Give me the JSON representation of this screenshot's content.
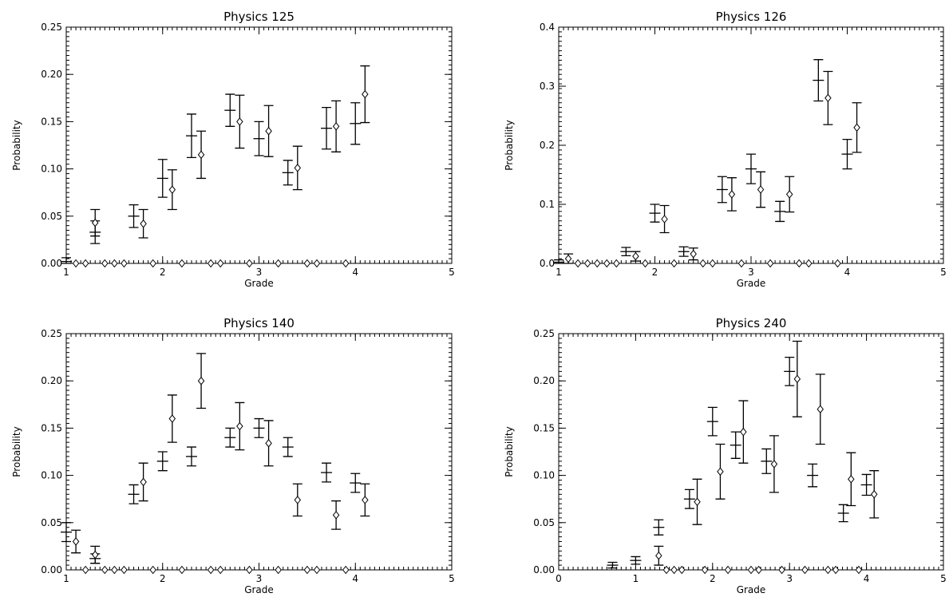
{
  "chart_data": [
    {
      "type": "scatter",
      "title": "Physics 125",
      "xlabel": "Grade",
      "ylabel": "Probability",
      "xlim": [
        1,
        5
      ],
      "ylim": [
        0,
        0.25
      ],
      "xticks": [
        "1",
        "2",
        "3",
        "4",
        "5"
      ],
      "yticks": [
        "0.00",
        "0.05",
        "0.10",
        "0.15",
        "0.20",
        "0.25"
      ],
      "series": [
        {
          "marker": "bar",
          "points": [
            {
              "x": 1.0,
              "y": 0.002,
              "err": 0.004
            },
            {
              "x": 1.3,
              "y": 0.033,
              "err": 0.012
            },
            {
              "x": 1.7,
              "y": 0.05,
              "err": 0.012
            },
            {
              "x": 2.0,
              "y": 0.09,
              "err": 0.02
            },
            {
              "x": 2.3,
              "y": 0.135,
              "err": 0.023
            },
            {
              "x": 2.7,
              "y": 0.162,
              "err": 0.017
            },
            {
              "x": 3.0,
              "y": 0.132,
              "err": 0.018
            },
            {
              "x": 3.3,
              "y": 0.096,
              "err": 0.013
            },
            {
              "x": 3.7,
              "y": 0.143,
              "err": 0.022
            },
            {
              "x": 4.0,
              "y": 0.148,
              "err": 0.022
            }
          ]
        },
        {
          "marker": "diamond",
          "points": [
            {
              "x": 1.3,
              "y": 0.043,
              "err": 0.014
            },
            {
              "x": 1.8,
              "y": 0.042,
              "err": 0.015
            },
            {
              "x": 2.1,
              "y": 0.078,
              "err": 0.021
            },
            {
              "x": 2.4,
              "y": 0.115,
              "err": 0.025
            },
            {
              "x": 2.8,
              "y": 0.15,
              "err": 0.028
            },
            {
              "x": 3.1,
              "y": 0.14,
              "err": 0.027
            },
            {
              "x": 3.4,
              "y": 0.101,
              "err": 0.023
            },
            {
              "x": 3.8,
              "y": 0.145,
              "err": 0.027
            },
            {
              "x": 4.1,
              "y": 0.179,
              "err": 0.03
            }
          ]
        },
        {
          "marker": "diamond",
          "points": [
            {
              "x": 1.1,
              "y": 0
            },
            {
              "x": 1.2,
              "y": 0
            },
            {
              "x": 1.4,
              "y": 0
            },
            {
              "x": 1.5,
              "y": 0
            },
            {
              "x": 1.6,
              "y": 0
            },
            {
              "x": 1.9,
              "y": 0
            },
            {
              "x": 2.2,
              "y": 0
            },
            {
              "x": 2.5,
              "y": 0
            },
            {
              "x": 2.6,
              "y": 0
            },
            {
              "x": 2.9,
              "y": 0
            },
            {
              "x": 3.2,
              "y": 0
            },
            {
              "x": 3.5,
              "y": 0
            },
            {
              "x": 3.6,
              "y": 0
            },
            {
              "x": 3.9,
              "y": 0
            }
          ]
        }
      ]
    },
    {
      "type": "scatter",
      "title": "Physics 126",
      "xlabel": "Grade",
      "ylabel": "Probability",
      "xlim": [
        1,
        5
      ],
      "ylim": [
        0,
        0.4
      ],
      "xticks": [
        "1",
        "2",
        "3",
        "4",
        "5"
      ],
      "yticks": [
        "0.0",
        "0.1",
        "0.2",
        "0.3",
        "0.4"
      ],
      "series": [
        {
          "marker": "bar",
          "points": [
            {
              "x": 1.0,
              "y": 0.002,
              "err": 0.004
            },
            {
              "x": 1.7,
              "y": 0.02,
              "err": 0.007
            },
            {
              "x": 2.0,
              "y": 0.085,
              "err": 0.015
            },
            {
              "x": 2.3,
              "y": 0.02,
              "err": 0.008
            },
            {
              "x": 2.7,
              "y": 0.125,
              "err": 0.022
            },
            {
              "x": 3.0,
              "y": 0.16,
              "err": 0.025
            },
            {
              "x": 3.3,
              "y": 0.088,
              "err": 0.017
            },
            {
              "x": 3.7,
              "y": 0.31,
              "err": 0.035
            },
            {
              "x": 4.0,
              "y": 0.185,
              "err": 0.025
            }
          ]
        },
        {
          "marker": "diamond",
          "points": [
            {
              "x": 1.1,
              "y": 0.008,
              "err": 0.008
            },
            {
              "x": 1.8,
              "y": 0.012,
              "err": 0.008
            },
            {
              "x": 2.1,
              "y": 0.075,
              "err": 0.023
            },
            {
              "x": 2.4,
              "y": 0.016,
              "err": 0.01
            },
            {
              "x": 2.8,
              "y": 0.117,
              "err": 0.028
            },
            {
              "x": 3.1,
              "y": 0.125,
              "err": 0.03
            },
            {
              "x": 3.4,
              "y": 0.117,
              "err": 0.03
            },
            {
              "x": 3.8,
              "y": 0.28,
              "err": 0.045
            },
            {
              "x": 4.1,
              "y": 0.23,
              "err": 0.042
            }
          ]
        },
        {
          "marker": "diamond",
          "points": [
            {
              "x": 1.2,
              "y": 0
            },
            {
              "x": 1.3,
              "y": 0
            },
            {
              "x": 1.4,
              "y": 0
            },
            {
              "x": 1.5,
              "y": 0
            },
            {
              "x": 1.6,
              "y": 0
            },
            {
              "x": 1.9,
              "y": 0
            },
            {
              "x": 2.2,
              "y": 0
            },
            {
              "x": 2.5,
              "y": 0
            },
            {
              "x": 2.6,
              "y": 0
            },
            {
              "x": 2.9,
              "y": 0
            },
            {
              "x": 3.2,
              "y": 0
            },
            {
              "x": 3.5,
              "y": 0
            },
            {
              "x": 3.6,
              "y": 0
            },
            {
              "x": 3.9,
              "y": 0
            }
          ]
        }
      ]
    },
    {
      "type": "scatter",
      "title": "Physics 140",
      "xlabel": "Grade",
      "ylabel": "Probability",
      "xlim": [
        1,
        5
      ],
      "ylim": [
        0,
        0.25
      ],
      "xticks": [
        "1",
        "2",
        "3",
        "4",
        "5"
      ],
      "yticks": [
        "0.00",
        "0.05",
        "0.10",
        "0.15",
        "0.20",
        "0.25"
      ],
      "series": [
        {
          "marker": "bar",
          "points": [
            {
              "x": 1.0,
              "y": 0.04,
              "err": 0.01
            },
            {
              "x": 1.3,
              "y": 0.012,
              "err": 0.005
            },
            {
              "x": 1.7,
              "y": 0.08,
              "err": 0.01
            },
            {
              "x": 2.0,
              "y": 0.115,
              "err": 0.01
            },
            {
              "x": 2.3,
              "y": 0.12,
              "err": 0.01
            },
            {
              "x": 2.7,
              "y": 0.14,
              "err": 0.01
            },
            {
              "x": 3.0,
              "y": 0.15,
              "err": 0.01
            },
            {
              "x": 3.3,
              "y": 0.13,
              "err": 0.01
            },
            {
              "x": 3.7,
              "y": 0.103,
              "err": 0.01
            },
            {
              "x": 4.0,
              "y": 0.092,
              "err": 0.01
            }
          ]
        },
        {
          "marker": "diamond",
          "points": [
            {
              "x": 1.1,
              "y": 0.03,
              "err": 0.012
            },
            {
              "x": 1.3,
              "y": 0.016,
              "err": 0.009
            },
            {
              "x": 1.8,
              "y": 0.093,
              "err": 0.02
            },
            {
              "x": 2.1,
              "y": 0.16,
              "err": 0.025
            },
            {
              "x": 2.4,
              "y": 0.2,
              "err": 0.029
            },
            {
              "x": 2.8,
              "y": 0.152,
              "err": 0.025
            },
            {
              "x": 3.1,
              "y": 0.134,
              "err": 0.024
            },
            {
              "x": 3.4,
              "y": 0.074,
              "err": 0.017
            },
            {
              "x": 3.8,
              "y": 0.058,
              "err": 0.015
            },
            {
              "x": 4.1,
              "y": 0.074,
              "err": 0.017
            }
          ]
        },
        {
          "marker": "diamond",
          "points": [
            {
              "x": 1.2,
              "y": 0
            },
            {
              "x": 1.4,
              "y": 0
            },
            {
              "x": 1.5,
              "y": 0
            },
            {
              "x": 1.6,
              "y": 0
            },
            {
              "x": 1.9,
              "y": 0
            },
            {
              "x": 2.2,
              "y": 0
            },
            {
              "x": 2.5,
              "y": 0
            },
            {
              "x": 2.6,
              "y": 0
            },
            {
              "x": 2.9,
              "y": 0
            },
            {
              "x": 3.2,
              "y": 0
            },
            {
              "x": 3.5,
              "y": 0
            },
            {
              "x": 3.6,
              "y": 0
            },
            {
              "x": 3.9,
              "y": 0
            }
          ]
        }
      ]
    },
    {
      "type": "scatter",
      "title": "Physics 240",
      "xlabel": "Grade",
      "ylabel": "Probability",
      "xlim": [
        0,
        5
      ],
      "ylim": [
        0,
        0.25
      ],
      "xticks": [
        "0",
        "1",
        "2",
        "3",
        "4",
        "5"
      ],
      "yticks": [
        "0.00",
        "0.05",
        "0.10",
        "0.15",
        "0.20",
        "0.25"
      ],
      "series": [
        {
          "marker": "bar",
          "points": [
            {
              "x": 0.7,
              "y": 0.005,
              "err": 0.003
            },
            {
              "x": 1.0,
              "y": 0.01,
              "err": 0.004
            },
            {
              "x": 1.3,
              "y": 0.045,
              "err": 0.008
            },
            {
              "x": 1.7,
              "y": 0.075,
              "err": 0.01
            },
            {
              "x": 2.0,
              "y": 0.157,
              "err": 0.015
            },
            {
              "x": 2.3,
              "y": 0.132,
              "err": 0.014
            },
            {
              "x": 2.7,
              "y": 0.115,
              "err": 0.013
            },
            {
              "x": 3.0,
              "y": 0.21,
              "err": 0.015
            },
            {
              "x": 3.3,
              "y": 0.1,
              "err": 0.012
            },
            {
              "x": 3.7,
              "y": 0.06,
              "err": 0.009
            },
            {
              "x": 4.0,
              "y": 0.09,
              "err": 0.011
            }
          ]
        },
        {
          "marker": "diamond",
          "points": [
            {
              "x": 1.3,
              "y": 0.015,
              "err": 0.01
            },
            {
              "x": 1.8,
              "y": 0.072,
              "err": 0.024
            },
            {
              "x": 2.1,
              "y": 0.104,
              "err": 0.029
            },
            {
              "x": 2.4,
              "y": 0.146,
              "err": 0.033
            },
            {
              "x": 2.8,
              "y": 0.112,
              "err": 0.03
            },
            {
              "x": 3.1,
              "y": 0.202,
              "err": 0.04
            },
            {
              "x": 3.4,
              "y": 0.17,
              "err": 0.037
            },
            {
              "x": 3.8,
              "y": 0.096,
              "err": 0.028
            },
            {
              "x": 4.1,
              "y": 0.08,
              "err": 0.025
            }
          ]
        },
        {
          "marker": "diamond",
          "points": [
            {
              "x": 1.4,
              "y": 0
            },
            {
              "x": 1.5,
              "y": 0
            },
            {
              "x": 1.6,
              "y": 0
            },
            {
              "x": 1.9,
              "y": 0
            },
            {
              "x": 2.2,
              "y": 0
            },
            {
              "x": 2.5,
              "y": 0
            },
            {
              "x": 2.6,
              "y": 0
            },
            {
              "x": 2.9,
              "y": 0
            },
            {
              "x": 3.2,
              "y": 0
            },
            {
              "x": 3.5,
              "y": 0
            },
            {
              "x": 3.6,
              "y": 0
            },
            {
              "x": 3.9,
              "y": 0
            }
          ]
        }
      ]
    }
  ]
}
